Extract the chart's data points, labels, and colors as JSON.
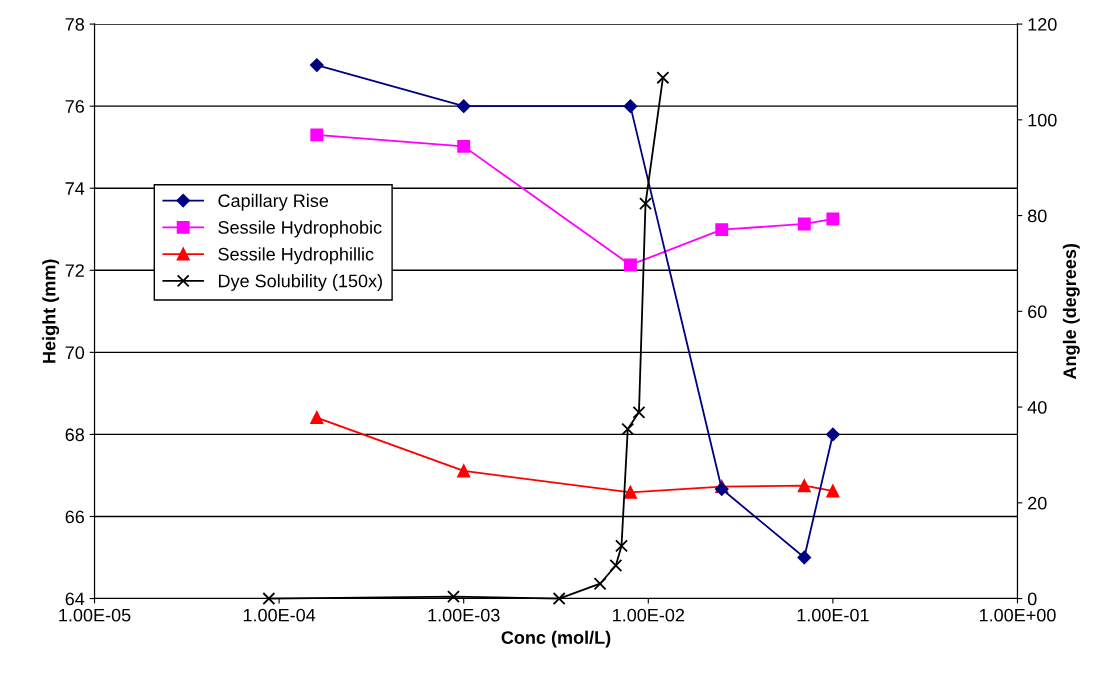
{
  "chart_data": {
    "type": "line",
    "xlabel": "Conc (mol/L)",
    "ylabel": "Height (mm)",
    "y2label": "Angle (degrees)",
    "log": "x",
    "xlim": [
      1e-05,
      1
    ],
    "xticks": [
      {
        "value": 1e-05,
        "label": "1.00E-05"
      },
      {
        "value": 0.0001,
        "label": "1.00E-04"
      },
      {
        "value": 0.001,
        "label": "1.00E-03"
      },
      {
        "value": 0.01,
        "label": "1.00E-02"
      },
      {
        "value": 0.1,
        "label": "1.00E-01"
      },
      {
        "value": 1,
        "label": "1.00E+00"
      }
    ],
    "ylim": [
      64,
      78
    ],
    "yticks": [
      64,
      66,
      68,
      70,
      72,
      74,
      76,
      78
    ],
    "y2lim": [
      0,
      120
    ],
    "y2ticks": [
      0,
      20,
      40,
      60,
      80,
      100,
      120
    ],
    "grid": "y",
    "legend": "left",
    "series": [
      {
        "name": "Capillary Rise",
        "color": "#000080",
        "marker": "diamond",
        "x": [
          0.00016,
          0.001,
          0.008,
          0.025,
          0.07,
          0.1
        ],
        "values": [
          77,
          76,
          76,
          66.67,
          65,
          68
        ]
      },
      {
        "name": "Sessile Hydrophobic",
        "color": "#ff00ff",
        "marker": "square",
        "x": [
          0.00016,
          0.001,
          0.008,
          0.025,
          0.07,
          0.1
        ],
        "values": [
          75.3,
          75.02,
          72.13,
          72.99,
          73.13,
          73.25
        ]
      },
      {
        "name": "Sessile Hydrophillic",
        "color": "#ff0000",
        "marker": "triangle",
        "x": [
          0.00016,
          0.001,
          0.008,
          0.025,
          0.07,
          0.1
        ],
        "values": [
          68.41,
          67.11,
          66.59,
          66.73,
          66.75,
          66.62
        ]
      },
      {
        "name": "Dye Solubility (150x)",
        "color": "#000000",
        "marker": "cross",
        "axis": "y2",
        "x": [
          8.8e-05,
          0.00088,
          0.00329,
          0.00548,
          0.00667,
          0.00716,
          0.00774,
          0.0089,
          0.00966,
          0.012
        ],
        "values": [
          0,
          0.4,
          0,
          3.1,
          6.9,
          11.0,
          35.4,
          38.9,
          82.5,
          108.8
        ]
      }
    ]
  }
}
